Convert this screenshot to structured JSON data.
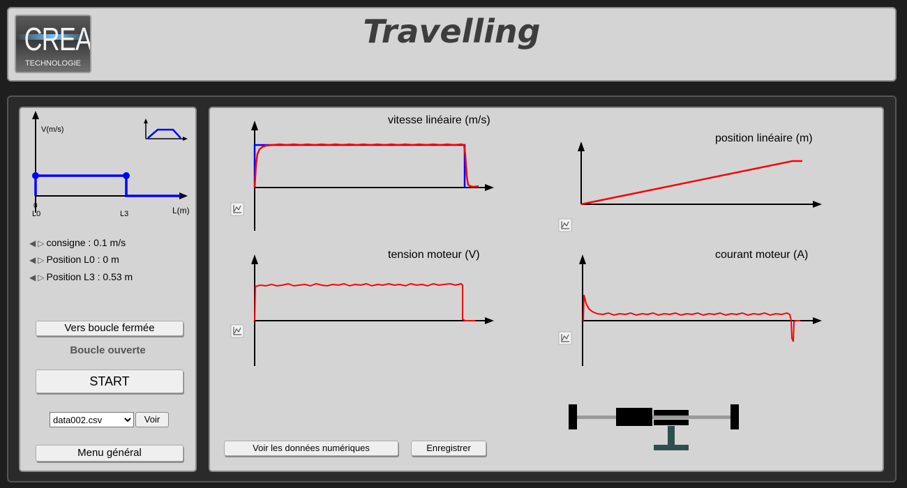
{
  "header": {
    "title": "Travelling",
    "logo": {
      "main": "CREA",
      "sub": "TECHNOLOGIE"
    }
  },
  "left_panel": {
    "profile_diagram": {
      "y_axis_label": "V(m/s)",
      "x_axis_label": "L(m)",
      "x_tick_0": "0",
      "x_tick_L0": "L0",
      "x_tick_L3": "L3"
    },
    "params": [
      {
        "label": "consigne : 0.1 m/s"
      },
      {
        "label": "Position L0 : 0 m"
      },
      {
        "label": "Position L3 : 0.53 m"
      }
    ],
    "loop_button": "Vers boucle fermée",
    "loop_status": "Boucle ouverte",
    "start_button": "START",
    "file_select": {
      "value": "data002.csv",
      "options": [
        "data002.csv"
      ]
    },
    "voir_button": "Voir",
    "menu_button": "Menu général"
  },
  "charts": {
    "vitesse": {
      "title": "vitesse linéaire (m/s)"
    },
    "position": {
      "title": "position linéaire (m)"
    },
    "tension": {
      "title": "tension moteur (V)"
    },
    "courant": {
      "title": "courant moteur (A)"
    }
  },
  "chart_data": [
    {
      "type": "line",
      "title": "vitesse linéaire (m/s)",
      "series": [
        {
          "color": "#0000ff",
          "values": [
            0,
            0.1,
            0.1,
            0.1,
            0.1,
            0.1,
            0.1,
            0.1,
            0.1,
            0
          ]
        },
        {
          "color": "#ff0000",
          "values": [
            0,
            0.095,
            0.1,
            0.101,
            0.1,
            0.1,
            0.101,
            0.1,
            0.1,
            0
          ]
        }
      ]
    },
    {
      "type": "line",
      "title": "position linéaire (m)",
      "series": [
        {
          "color": "#ff0000",
          "values": [
            0,
            0.53
          ]
        }
      ]
    },
    {
      "type": "line",
      "title": "tension moteur (V)",
      "series": [
        {
          "color": "#ff0000",
          "values": [
            0,
            1,
            1,
            1,
            1,
            1,
            1,
            0
          ]
        }
      ]
    },
    {
      "type": "line",
      "title": "courant moteur (A)",
      "series": [
        {
          "color": "#ff0000",
          "values": [
            0,
            0.8,
            0.2,
            0.2,
            0.2,
            0.2,
            0.2,
            -0.9,
            0
          ]
        }
      ]
    }
  ],
  "bottom_buttons": {
    "data_button": "Voir les données numériques",
    "save_button": "Enregistrer"
  },
  "colors": {
    "setpoint": "#0000ff",
    "measure": "#ff0000",
    "profile": "#0000ff",
    "mechanism_dark": "#000000",
    "mechanism_gray": "#9a9a9a",
    "mechanism_teal": "#2f4f4f"
  }
}
